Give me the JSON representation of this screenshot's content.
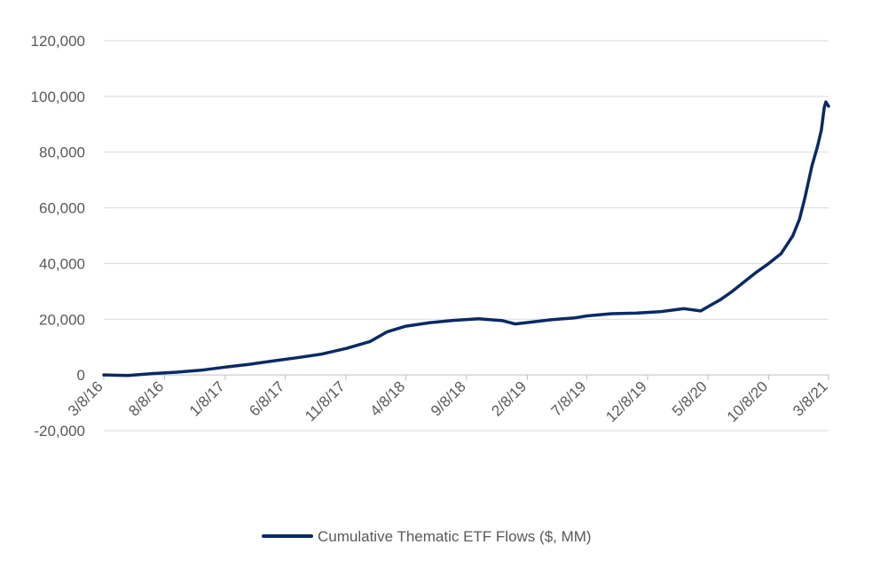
{
  "chart_data": {
    "type": "line",
    "title": "",
    "xlabel": "",
    "ylabel": "",
    "ylim": [
      -20000,
      120000
    ],
    "yticks": [
      -20000,
      0,
      20000,
      40000,
      60000,
      80000,
      100000,
      120000
    ],
    "ytick_labels": [
      "-20,000",
      "0",
      "20,000",
      "40,000",
      "60,000",
      "80,000",
      "100,000",
      "120,000"
    ],
    "xlim": [
      "2016-03-08",
      "2021-03-08"
    ],
    "xticks": [
      "2016-03-08",
      "2016-08-08",
      "2017-01-08",
      "2017-06-08",
      "2017-11-08",
      "2018-04-08",
      "2018-09-08",
      "2019-02-08",
      "2019-07-08",
      "2019-12-08",
      "2020-05-08",
      "2020-10-08",
      "2021-03-08"
    ],
    "xtick_labels": [
      "3/8/16",
      "8/8/16",
      "1/8/17",
      "6/8/17",
      "11/8/17",
      "4/8/18",
      "9/8/18",
      "2/8/19",
      "7/8/19",
      "12/8/19",
      "5/8/20",
      "10/8/20",
      "3/8/21"
    ],
    "grid": true,
    "legend_position": "bottom-center",
    "line_color": "#0b2a63",
    "series": [
      {
        "name": "Cumulative Thematic ETF Flows ($, MM)",
        "x": [
          "2016-03-08",
          "2016-05-08",
          "2016-07-08",
          "2016-09-08",
          "2016-11-08",
          "2017-01-08",
          "2017-03-08",
          "2017-05-08",
          "2017-07-08",
          "2017-09-08",
          "2017-11-08",
          "2018-01-08",
          "2018-02-20",
          "2018-04-08",
          "2018-06-08",
          "2018-08-08",
          "2018-10-08",
          "2018-12-08",
          "2019-01-08",
          "2019-02-20",
          "2019-04-08",
          "2019-06-08",
          "2019-07-08",
          "2019-09-08",
          "2019-11-08",
          "2020-01-08",
          "2020-03-08",
          "2020-04-20",
          "2020-05-08",
          "2020-06-08",
          "2020-07-08",
          "2020-08-08",
          "2020-09-08",
          "2020-10-08",
          "2020-11-08",
          "2020-12-08",
          "2020-12-25",
          "2021-01-08",
          "2021-01-25",
          "2021-02-08",
          "2021-02-18",
          "2021-02-25",
          "2021-03-01",
          "2021-03-08"
        ],
        "values": [
          0,
          -200,
          500,
          1000,
          1700,
          2800,
          3800,
          5000,
          6200,
          7500,
          9500,
          12000,
          15500,
          17500,
          18800,
          19600,
          20200,
          19500,
          18300,
          19000,
          19800,
          20500,
          21200,
          22000,
          22200,
          22700,
          23800,
          23000,
          24500,
          27000,
          30000,
          33500,
          37000,
          40000,
          43500,
          50000,
          56000,
          64000,
          75000,
          82000,
          88000,
          96000,
          98000,
          96500
        ]
      }
    ]
  }
}
